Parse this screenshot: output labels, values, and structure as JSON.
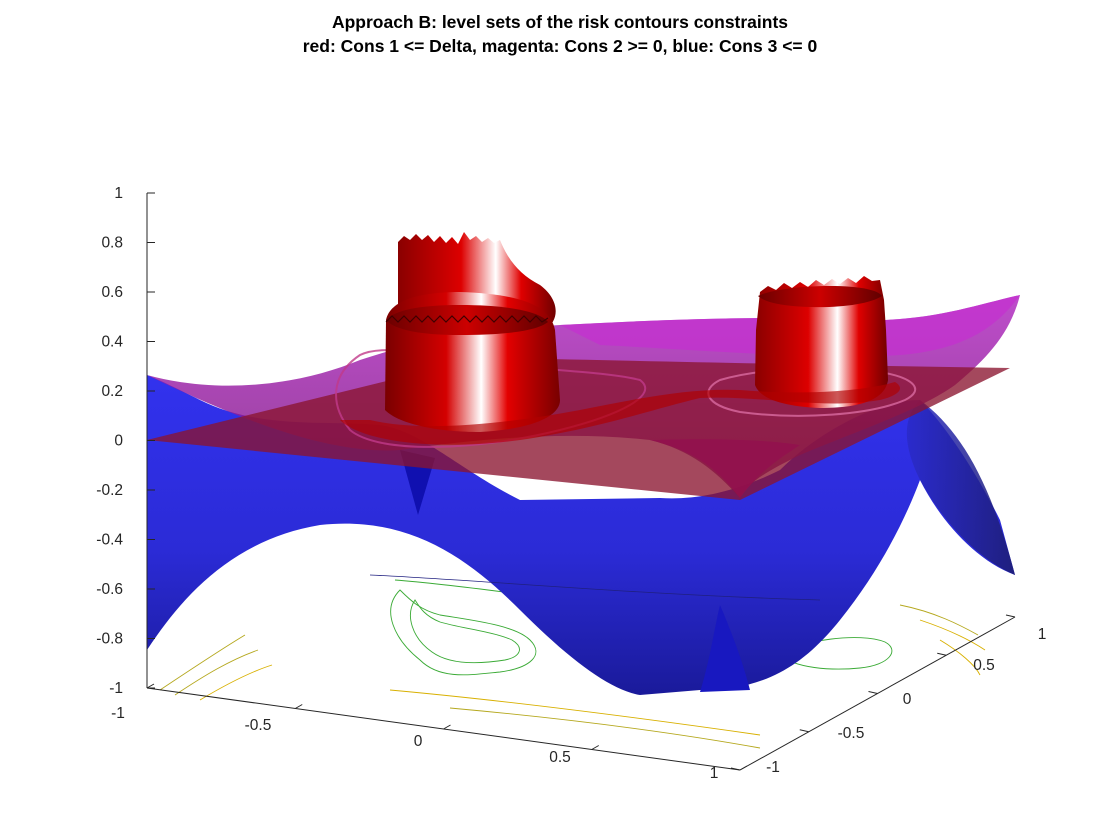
{
  "chart_data": {
    "type": "surface",
    "title": "Approach B: level sets of the risk contours constraints",
    "subtitle": "red: Cons 1 <= Delta, magenta: Cons 2 >= 0, blue: Cons 3 <= 0",
    "xlabel": "",
    "ylabel": "",
    "zlabel": "",
    "xlim": [
      -1,
      1
    ],
    "ylim": [
      -1,
      1
    ],
    "zlim": [
      -1,
      1
    ],
    "x_ticks": [
      "-1",
      "-0.5",
      "0",
      "0.5",
      "1"
    ],
    "y_ticks": [
      "-1",
      "-0.5",
      "0",
      "0.5",
      "1"
    ],
    "z_ticks": [
      "1",
      "0.8",
      "0.6",
      "0.4",
      "0.2",
      "0",
      "-0.2",
      "-0.4",
      "-0.6",
      "-0.8",
      "-1"
    ],
    "grid": false,
    "series": [
      {
        "constraint": "Cons 1 <= Delta",
        "color": "#cc0000",
        "level_plane_z": 0,
        "peak_height": 0.85,
        "peaks": [
          {
            "x": -0.6,
            "y": 0.5
          },
          {
            "x": 0.6,
            "y": 0.5
          }
        ]
      },
      {
        "constraint": "Cons 2 >= 0",
        "color": "#b300b3",
        "z_range": [
          -0.2,
          0.6
        ]
      },
      {
        "constraint": "Cons 3 <= 0",
        "color": "#1a1aff",
        "z_range": [
          -0.9,
          0.3
        ]
      }
    ],
    "floor_contours": [
      "#3aaa35",
      "#b5a81e",
      "#d8b000"
    ]
  }
}
